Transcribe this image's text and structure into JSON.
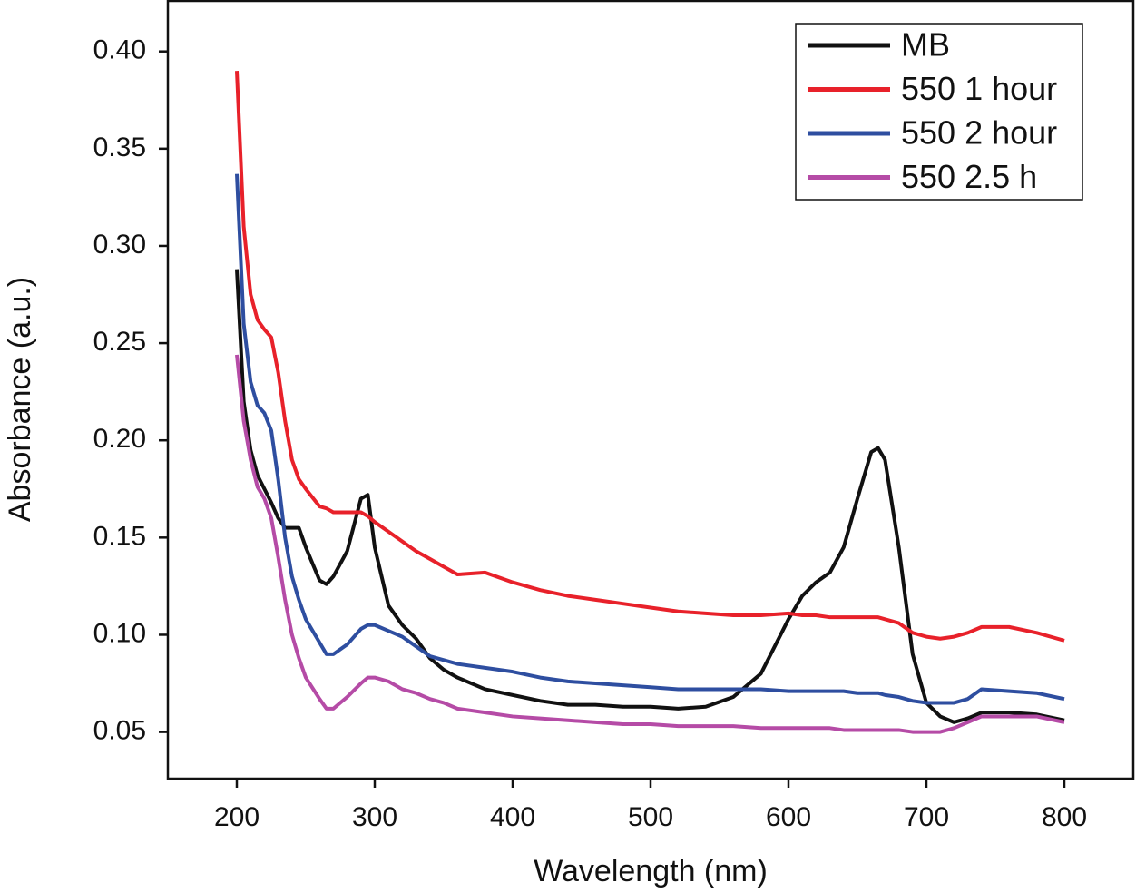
{
  "chart_data": {
    "type": "line",
    "x_label": "Wavelength (nm)",
    "y_label": "Absorbance (a.u.)",
    "x": [
      200,
      205,
      210,
      215,
      220,
      225,
      230,
      235,
      240,
      245,
      250,
      260,
      265,
      270,
      280,
      290,
      295,
      300,
      310,
      320,
      330,
      340,
      350,
      360,
      380,
      400,
      420,
      440,
      460,
      480,
      500,
      520,
      540,
      560,
      580,
      600,
      610,
      620,
      630,
      640,
      650,
      660,
      665,
      670,
      680,
      690,
      700,
      710,
      720,
      730,
      740,
      760,
      780,
      800
    ],
    "series": [
      {
        "name": "MB",
        "color": "#111111",
        "values": [
          0.288,
          0.22,
          0.195,
          0.182,
          0.175,
          0.168,
          0.16,
          0.155,
          0.155,
          0.155,
          0.145,
          0.128,
          0.126,
          0.13,
          0.143,
          0.17,
          0.172,
          0.145,
          0.115,
          0.105,
          0.098,
          0.088,
          0.082,
          0.078,
          0.072,
          0.069,
          0.066,
          0.064,
          0.064,
          0.063,
          0.063,
          0.062,
          0.063,
          0.068,
          0.08,
          0.108,
          0.12,
          0.127,
          0.132,
          0.145,
          0.17,
          0.194,
          0.196,
          0.19,
          0.145,
          0.09,
          0.065,
          0.058,
          0.055,
          0.057,
          0.06,
          0.06,
          0.059,
          0.056
        ]
      },
      {
        "name": "550 1 hour",
        "color": "#e8212a",
        "values": [
          0.39,
          0.31,
          0.275,
          0.262,
          0.257,
          0.253,
          0.235,
          0.21,
          0.19,
          0.18,
          0.175,
          0.166,
          0.165,
          0.163,
          0.163,
          0.163,
          0.161,
          0.158,
          0.153,
          0.148,
          0.143,
          0.139,
          0.135,
          0.131,
          0.132,
          0.127,
          0.123,
          0.12,
          0.118,
          0.116,
          0.114,
          0.112,
          0.111,
          0.11,
          0.11,
          0.111,
          0.11,
          0.11,
          0.109,
          0.109,
          0.109,
          0.109,
          0.109,
          0.108,
          0.106,
          0.101,
          0.099,
          0.098,
          0.099,
          0.101,
          0.104,
          0.104,
          0.101,
          0.097
        ]
      },
      {
        "name": "550 2 hour",
        "color": "#2e4ea0",
        "values": [
          0.337,
          0.26,
          0.23,
          0.218,
          0.214,
          0.205,
          0.18,
          0.15,
          0.13,
          0.118,
          0.108,
          0.096,
          0.09,
          0.09,
          0.095,
          0.103,
          0.105,
          0.105,
          0.102,
          0.099,
          0.094,
          0.089,
          0.087,
          0.085,
          0.083,
          0.081,
          0.078,
          0.076,
          0.075,
          0.074,
          0.073,
          0.072,
          0.072,
          0.072,
          0.072,
          0.071,
          0.071,
          0.071,
          0.071,
          0.071,
          0.07,
          0.07,
          0.07,
          0.069,
          0.068,
          0.066,
          0.065,
          0.065,
          0.065,
          0.067,
          0.072,
          0.071,
          0.07,
          0.067
        ]
      },
      {
        "name": "550 2.5 h",
        "color": "#b54ba6",
        "values": [
          0.244,
          0.21,
          0.19,
          0.176,
          0.17,
          0.16,
          0.14,
          0.118,
          0.1,
          0.088,
          0.078,
          0.067,
          0.062,
          0.062,
          0.068,
          0.075,
          0.078,
          0.078,
          0.076,
          0.072,
          0.07,
          0.067,
          0.065,
          0.062,
          0.06,
          0.058,
          0.057,
          0.056,
          0.055,
          0.054,
          0.054,
          0.053,
          0.053,
          0.053,
          0.052,
          0.052,
          0.052,
          0.052,
          0.052,
          0.051,
          0.051,
          0.051,
          0.051,
          0.051,
          0.051,
          0.05,
          0.05,
          0.05,
          0.052,
          0.055,
          0.058,
          0.058,
          0.058,
          0.055
        ]
      }
    ],
    "xlim": [
      150,
      850
    ],
    "ylim": [
      0.026,
      0.426
    ],
    "xticks": [
      200,
      300,
      400,
      500,
      600,
      700,
      800
    ],
    "yticks": [
      {
        "value": 0.05,
        "label": "0.05"
      },
      {
        "value": 0.1,
        "label": "0.10"
      },
      {
        "value": 0.15,
        "label": "0.15"
      },
      {
        "value": 0.2,
        "label": "0.20"
      },
      {
        "value": 0.25,
        "label": "0.25"
      },
      {
        "value": 0.3,
        "label": "0.30"
      },
      {
        "value": 0.35,
        "label": "0.35"
      },
      {
        "value": 0.4,
        "label": "0.40"
      }
    ],
    "legend": "upper right",
    "grid": false
  }
}
